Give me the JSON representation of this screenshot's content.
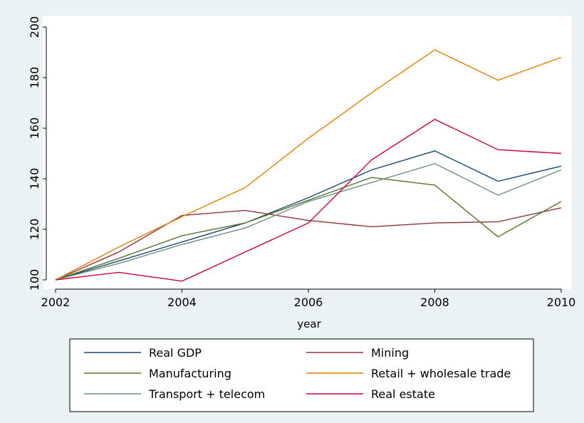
{
  "chart_data": {
    "type": "line",
    "title": "",
    "xlabel": "year",
    "ylabel": "",
    "x": [
      2002,
      2003,
      2004,
      2005,
      2006,
      2007,
      2008,
      2009,
      2010
    ],
    "x_ticks": [
      "2002",
      "2004",
      "2006",
      "2008",
      "2010"
    ],
    "y_ticks": [
      "100",
      "120",
      "140",
      "160",
      "180",
      "200"
    ],
    "xlim": [
      2002,
      2010
    ],
    "ylim": [
      100,
      200
    ],
    "grid": false,
    "legend_position": "bottom",
    "series": [
      {
        "name": "Real GDP",
        "color": "#1a476f",
        "values": [
          100,
          107.5,
          115,
          122.5,
          132.5,
          143.5,
          151,
          139,
          145
        ]
      },
      {
        "name": "Mining",
        "color": "#90353b",
        "values": [
          100,
          111,
          125.5,
          127.5,
          123.5,
          121,
          122.5,
          123,
          128.5
        ]
      },
      {
        "name": "Manufacturing",
        "color": "#55752f",
        "values": [
          100,
          108.5,
          117.5,
          122.5,
          131.5,
          140.5,
          137.5,
          117,
          131
        ]
      },
      {
        "name": "Retail + wholesale trade",
        "color": "#e37e00",
        "values": [
          100,
          113,
          125,
          136.5,
          156,
          174,
          191,
          179,
          188
        ]
      },
      {
        "name": "Transport + telecom",
        "color": "#6e8e84",
        "values": [
          100,
          106.5,
          114,
          120.5,
          131,
          138.5,
          146,
          133.5,
          143.5
        ]
      },
      {
        "name": "Real estate",
        "color": "#c10534",
        "values": [
          100,
          103,
          99.5,
          111,
          122.5,
          147.5,
          163.5,
          151.5,
          150
        ]
      }
    ]
  },
  "colors": {
    "outer_background": "#eaf2f3",
    "plot_background": "#ffffff",
    "legend_background": "#ffffff"
  }
}
